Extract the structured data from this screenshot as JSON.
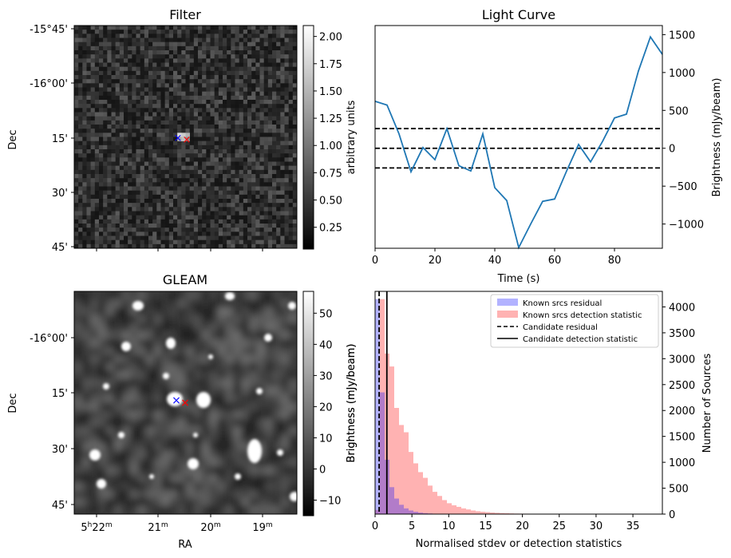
{
  "chart_data": [
    {
      "type": "heatmap",
      "title": "Filter",
      "ylabel": "Dec",
      "yticks": [
        "-15°45'",
        "-16°00'",
        "15'",
        "30'",
        "45'"
      ],
      "colorbar": {
        "label": "arbitrary units",
        "range": [
          0.05,
          2.1
        ],
        "ticks": [
          "0.25",
          "0.50",
          "0.75",
          "1.00",
          "1.25",
          "1.50",
          "1.75",
          "2.00"
        ]
      },
      "markers": [
        {
          "symbol": "×",
          "color": "#0000ff"
        },
        {
          "symbol": "×",
          "color": "#ff0000"
        }
      ]
    },
    {
      "type": "line",
      "title": "Light Curve",
      "xlabel": "Time (s)",
      "ylabel": "Brightness (mJy/beam)",
      "xlim": [
        0,
        96
      ],
      "ylim": [
        -1320,
        1620
      ],
      "xticks": [
        "0",
        "20",
        "40",
        "60",
        "80"
      ],
      "yticks": [
        "1500",
        "1000",
        "500",
        "0",
        "−500",
        "−1000"
      ],
      "color": "#1f77b4",
      "hlines": [
        260,
        0,
        -260
      ],
      "x": [
        0,
        4,
        8,
        12,
        16,
        20,
        24,
        28,
        32,
        36,
        40,
        44,
        48,
        52,
        56,
        60,
        64,
        68,
        72,
        76,
        80,
        84,
        88,
        92,
        96
      ],
      "values": [
        620,
        570,
        190,
        -310,
        10,
        -150,
        260,
        -230,
        -300,
        190,
        -520,
        -690,
        -1310,
        -1000,
        -700,
        -670,
        -300,
        50,
        -180,
        90,
        400,
        450,
        1020,
        1470,
        1240
      ]
    },
    {
      "type": "heatmap",
      "title": "GLEAM",
      "xlabel": "RA",
      "ylabel": "Dec",
      "xticks": [
        "5h22m",
        "21m",
        "20m",
        "19m"
      ],
      "yticks": [
        "-16°00'",
        "15'",
        "30'",
        "45'"
      ],
      "colorbar": {
        "label": "Brightness (mJy/beam)",
        "range": [
          -15,
          57
        ],
        "ticks": [
          "−10",
          "0",
          "10",
          "20",
          "30",
          "40",
          "50"
        ]
      },
      "markers": [
        {
          "symbol": "×",
          "color": "#0000ff"
        },
        {
          "symbol": "×",
          "color": "#ff0000"
        }
      ]
    },
    {
      "type": "bar",
      "xlabel": "Normalised stdev or detection statistics",
      "ylabel_left": "Brightness (mJy/beam)",
      "ylabel_right": "Number of Sources",
      "xlim": [
        0,
        39
      ],
      "ylim": [
        0,
        4300
      ],
      "xticks": [
        "0",
        "5",
        "10",
        "15",
        "20",
        "25",
        "30",
        "35"
      ],
      "yticks": [
        "0",
        "500",
        "1000",
        "1500",
        "2000",
        "2500",
        "3000",
        "3500",
        "4000"
      ],
      "legend_position": "upper right",
      "legend": [
        {
          "label": "Known srcs residual",
          "style": "patch",
          "color": "#0000ff"
        },
        {
          "label": "Known srcs detection statistic",
          "style": "patch",
          "color": "#ff0000"
        },
        {
          "label": "Candidate residual",
          "style": "dashed"
        },
        {
          "label": "Candidate detection statistic",
          "style": "solid"
        }
      ],
      "bin_width": 0.65,
      "series": [
        {
          "name": "Known srcs residual",
          "color": "#0000ff",
          "bins_start": 0.0,
          "values": [
            4150,
            2350,
            1050,
            520,
            300,
            180,
            110,
            70,
            45,
            28,
            18,
            12,
            8,
            5,
            3,
            2
          ]
        },
        {
          "name": "Known srcs detection statistic",
          "color": "#ff0000",
          "bins_start": 0.0,
          "values": [
            80,
            4150,
            3100,
            2850,
            2050,
            1720,
            1580,
            1200,
            980,
            810,
            700,
            550,
            430,
            350,
            270,
            210,
            170,
            140,
            110,
            90,
            70,
            55,
            45,
            38,
            30,
            25,
            20,
            16,
            13,
            10,
            9,
            8,
            7,
            6,
            5,
            4,
            4,
            3,
            3,
            3,
            2,
            2,
            2,
            2,
            2,
            1,
            1,
            1,
            1,
            1,
            1,
            1,
            1,
            1,
            1,
            1,
            1,
            1,
            1,
            1
          ]
        }
      ],
      "vlines": [
        {
          "x": 0.55,
          "style": "dashed"
        },
        {
          "x": 1.6,
          "style": "solid"
        }
      ]
    }
  ]
}
